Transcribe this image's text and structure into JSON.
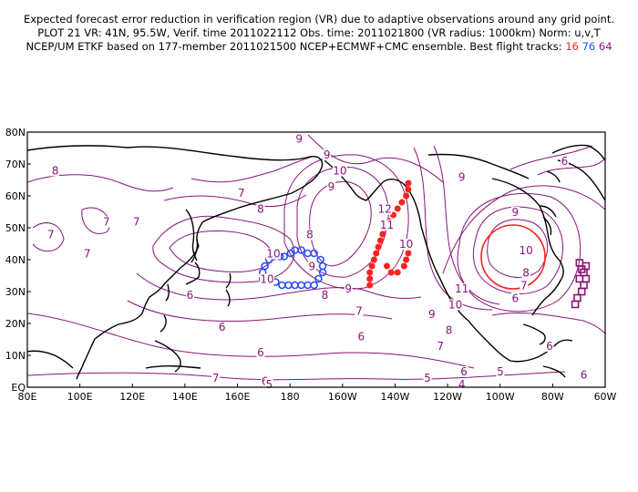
{
  "header": {
    "line1": "Expected forecast error reduction in verification region (VR) due to adaptive observations around any grid point.",
    "line2": "PLOT 21 VR: 41N, 95.5W, Verif. time 2011022112 Obs. time: 2011021800 (VR radius: 1000km) Norm: u,v,T",
    "line3": "NCEP/UM ETKF based on 177-member 2011021500 NCEP+ECMWF+CMC ensemble. Best flight tracks:",
    "track_16": "16",
    "track_76": "76",
    "track_64": "64"
  },
  "colors": {
    "contour": "#8a1477",
    "track_16": "#ff2020",
    "track_76": "#2a4dff",
    "track_64": "#8a1477",
    "verification_circle": "#ff2020",
    "land": "#000000"
  },
  "map": {
    "projection": "cylindrical",
    "lon_range_deg_east": [
      30,
      300
    ],
    "lat_range": [
      0,
      80
    ],
    "x_ticks": [
      "80E",
      "100E",
      "120E",
      "140E",
      "160E",
      "180",
      "160W",
      "140W",
      "120W",
      "100W",
      "80W",
      "60W"
    ],
    "y_ticks": [
      "EQ",
      "10N",
      "20N",
      "30N",
      "40N",
      "50N",
      "60N",
      "70N",
      "80N"
    ],
    "verification_region": {
      "lat": 41,
      "lon": "95.5W",
      "radius_km": 1000
    },
    "contour_labels": [
      {
        "text": "8",
        "lon": 43,
        "lat": 67
      },
      {
        "text": "7",
        "lon": 41,
        "lat": 47
      },
      {
        "text": "7",
        "lon": 67,
        "lat": 51
      },
      {
        "text": "7",
        "lon": 58,
        "lat": 41
      },
      {
        "text": "7",
        "lon": 81,
        "lat": 51
      },
      {
        "text": "6",
        "lon": 106,
        "lat": 28
      },
      {
        "text": "7",
        "lon": 130,
        "lat": 60
      },
      {
        "text": "8",
        "lon": 139,
        "lat": 55
      },
      {
        "text": "9",
        "lon": 157,
        "lat": 77
      },
      {
        "text": "9",
        "lon": 170,
        "lat": 72
      },
      {
        "text": "10",
        "lon": 176,
        "lat": 67
      },
      {
        "text": "9",
        "lon": 172,
        "lat": 62
      },
      {
        "text": "8",
        "lon": 162,
        "lat": 47
      },
      {
        "text": "10",
        "lon": 145,
        "lat": 41
      },
      {
        "text": "9",
        "lon": 163,
        "lat": 37
      },
      {
        "text": "10",
        "lon": 142,
        "lat": 33
      },
      {
        "text": "8",
        "lon": 169,
        "lat": 28
      },
      {
        "text": "9",
        "lon": 180,
        "lat": 30
      },
      {
        "text": "7",
        "lon": 185,
        "lat": 23
      },
      {
        "text": "6",
        "lon": 121,
        "lat": 18
      },
      {
        "text": "6",
        "lon": 139,
        "lat": 10
      },
      {
        "text": "6",
        "lon": 186,
        "lat": 15
      },
      {
        "text": "7",
        "lon": 118,
        "lat": 2
      },
      {
        "text": "6",
        "lon": 141,
        "lat": 1
      },
      {
        "text": "5",
        "lon": 143,
        "lat": 0
      },
      {
        "text": "12",
        "lon": 197,
        "lat": 55
      },
      {
        "text": "11",
        "lon": 198,
        "lat": 50
      },
      {
        "text": "10",
        "lon": 207,
        "lat": 44
      },
      {
        "text": "9",
        "lon": 233,
        "lat": 65
      },
      {
        "text": "11",
        "lon": 233,
        "lat": 30
      },
      {
        "text": "10",
        "lon": 230,
        "lat": 25
      },
      {
        "text": "9",
        "lon": 219,
        "lat": 22
      },
      {
        "text": "8",
        "lon": 227,
        "lat": 17
      },
      {
        "text": "7",
        "lon": 223,
        "lat": 12
      },
      {
        "text": "6",
        "lon": 234,
        "lat": 4
      },
      {
        "text": "5",
        "lon": 251,
        "lat": 4
      },
      {
        "text": "5",
        "lon": 217,
        "lat": 2
      },
      {
        "text": "4",
        "lon": 233,
        "lat": 0
      },
      {
        "text": "9",
        "lon": 258,
        "lat": 54
      },
      {
        "text": "10",
        "lon": 263,
        "lat": 42
      },
      {
        "text": "8",
        "lon": 263,
        "lat": 35
      },
      {
        "text": "7",
        "lon": 262,
        "lat": 31
      },
      {
        "text": "6",
        "lon": 258,
        "lat": 27
      },
      {
        "text": "6",
        "lon": 281,
        "lat": 70
      },
      {
        "text": "6",
        "lon": 290,
        "lat": 3
      },
      {
        "text": "6",
        "lon": 274,
        "lat": 12
      }
    ],
    "tracks": [
      {
        "id": "16",
        "points": [
          [
            190,
            32
          ],
          [
            190,
            34
          ],
          [
            190,
            36
          ],
          [
            191,
            38
          ],
          [
            192,
            40
          ],
          [
            193,
            42
          ],
          [
            194,
            44
          ],
          [
            195,
            46
          ],
          [
            196,
            48
          ],
          [
            197,
            50
          ],
          [
            199,
            52
          ],
          [
            201,
            54
          ],
          [
            203,
            56
          ],
          [
            205,
            58
          ],
          [
            207,
            60
          ],
          [
            208,
            62
          ],
          [
            208,
            64
          ],
          [
            198,
            38
          ],
          [
            200,
            36
          ],
          [
            203,
            36
          ],
          [
            206,
            38
          ],
          [
            207,
            40
          ],
          [
            208,
            42
          ]
        ]
      },
      {
        "id": "76",
        "points": [
          [
            140,
            34
          ],
          [
            140,
            36
          ],
          [
            141,
            38
          ],
          [
            143,
            40
          ],
          [
            145,
            41
          ],
          [
            148,
            41
          ],
          [
            150,
            41
          ],
          [
            153,
            42
          ],
          [
            155,
            43
          ],
          [
            158,
            43
          ],
          [
            161,
            42
          ],
          [
            164,
            42
          ],
          [
            167,
            40
          ],
          [
            168,
            38
          ],
          [
            168,
            36
          ],
          [
            166,
            34
          ],
          [
            164,
            32
          ],
          [
            161,
            32
          ],
          [
            158,
            32
          ],
          [
            155,
            32
          ],
          [
            152,
            32
          ],
          [
            149,
            32
          ],
          [
            146,
            33
          ]
        ]
      },
      {
        "id": "64",
        "points": [
          [
            288,
            39
          ],
          [
            289,
            37
          ],
          [
            290,
            36
          ],
          [
            291,
            34
          ],
          [
            290,
            32
          ],
          [
            289,
            30
          ],
          [
            287,
            28
          ],
          [
            286,
            26
          ],
          [
            291,
            38
          ],
          [
            288,
            34
          ]
        ]
      }
    ]
  }
}
